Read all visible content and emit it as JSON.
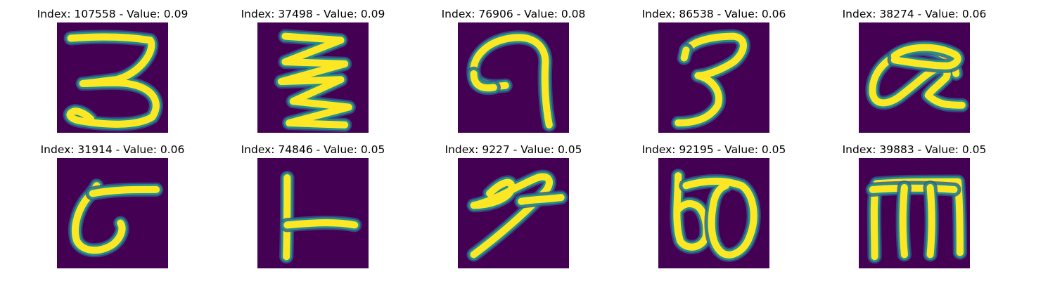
{
  "panels": [
    {
      "title": "Index: 107558 - Value: 0.09",
      "glyph": "glyph-3-hook"
    },
    {
      "title": "Index: 37498 - Value: 0.09",
      "glyph": "glyph-zigzag"
    },
    {
      "title": "Index: 76906 - Value: 0.08",
      "glyph": "glyph-9-curl"
    },
    {
      "title": "Index: 86538 - Value: 0.06",
      "glyph": "glyph-3"
    },
    {
      "title": "Index: 38274 - Value: 0.06",
      "glyph": "glyph-alpha-loop"
    },
    {
      "title": "Index: 31914 - Value: 0.06",
      "glyph": "glyph-t-curve"
    },
    {
      "title": "Index: 74846 - Value: 0.05",
      "glyph": "glyph-L"
    },
    {
      "title": "Index: 9227 - Value: 0.05",
      "glyph": "glyph-slash-loop"
    },
    {
      "title": "Index: 92195 - Value: 0.05",
      "glyph": "glyph-double-loop"
    },
    {
      "title": "Index: 39883 - Value: 0.05",
      "glyph": "glyph-m-frame"
    }
  ],
  "colors": {
    "background": "#440154",
    "stroke": "#fde725",
    "edge": "#21918c",
    "edge_outer": "#3b528b"
  }
}
